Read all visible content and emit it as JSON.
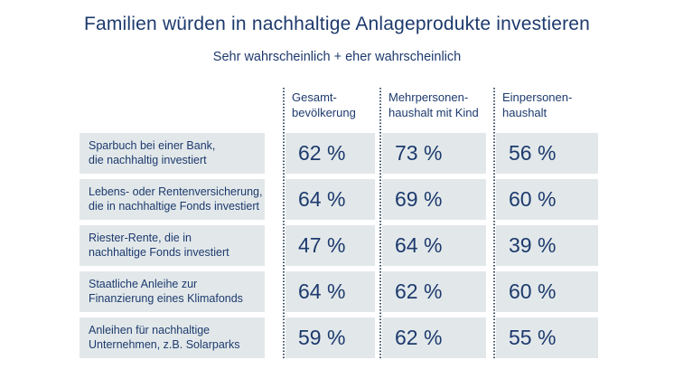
{
  "title": "Familien würden in nachhaltige Anlageprodukte investieren",
  "subtitle": "Sehr wahrscheinlich + eher wahrscheinlich",
  "colors": {
    "text_navy": "#1d3a6d",
    "row_background": "#e2e8ea",
    "dotted_line": "#3f536a",
    "page_background": "#ffffff"
  },
  "table": {
    "column_headers": [
      "Gesamt-\nbevölkerung",
      "Mehrpersonen-\nhaushalt mit Kind",
      "Einpersonen-\nhaushalt"
    ],
    "rows": [
      {
        "label": "Sparbuch bei einer Bank,\ndie nachhaltig investiert",
        "values": [
          "62 %",
          "73 %",
          "56 %"
        ]
      },
      {
        "label": "Lebens- oder Rentenversicherung,\ndie in nachhaltige Fonds investiert",
        "values": [
          "64 %",
          "69 %",
          "60 %"
        ]
      },
      {
        "label": "Riester-Rente, die in\nnachhaltige Fonds investiert",
        "values": [
          "47 %",
          "64 %",
          "39 %"
        ]
      },
      {
        "label": "Staatliche Anleihe zur\nFinanzierung eines Klimafonds",
        "values": [
          "64 %",
          "62 %",
          "60 %"
        ]
      },
      {
        "label": "Anleihen für nachhaltige\nUnternehmen, z.B. Solarparks",
        "values": [
          "59 %",
          "62 %",
          "55 %"
        ]
      }
    ]
  },
  "chart_data": {
    "type": "table",
    "title": "Familien würden in nachhaltige Anlageprodukte investieren",
    "subtitle": "Sehr wahrscheinlich + eher wahrscheinlich",
    "unit": "%",
    "categories": [
      "Sparbuch bei einer Bank, die nachhaltig investiert",
      "Lebens- oder Rentenversicherung, die in nachhaltige Fonds investiert",
      "Riester-Rente, die in nachhaltige Fonds investiert",
      "Staatliche Anleihe zur Finanzierung eines Klimafonds",
      "Anleihen für nachhaltige Unternehmen, z.B. Solarparks"
    ],
    "series": [
      {
        "name": "Gesamtbevölkerung",
        "values": [
          62,
          64,
          47,
          64,
          59
        ]
      },
      {
        "name": "Mehrpersonenhaushalt mit Kind",
        "values": [
          73,
          69,
          64,
          62,
          62
        ]
      },
      {
        "name": "Einpersonenhaushalt",
        "values": [
          56,
          60,
          39,
          60,
          55
        ]
      }
    ]
  }
}
